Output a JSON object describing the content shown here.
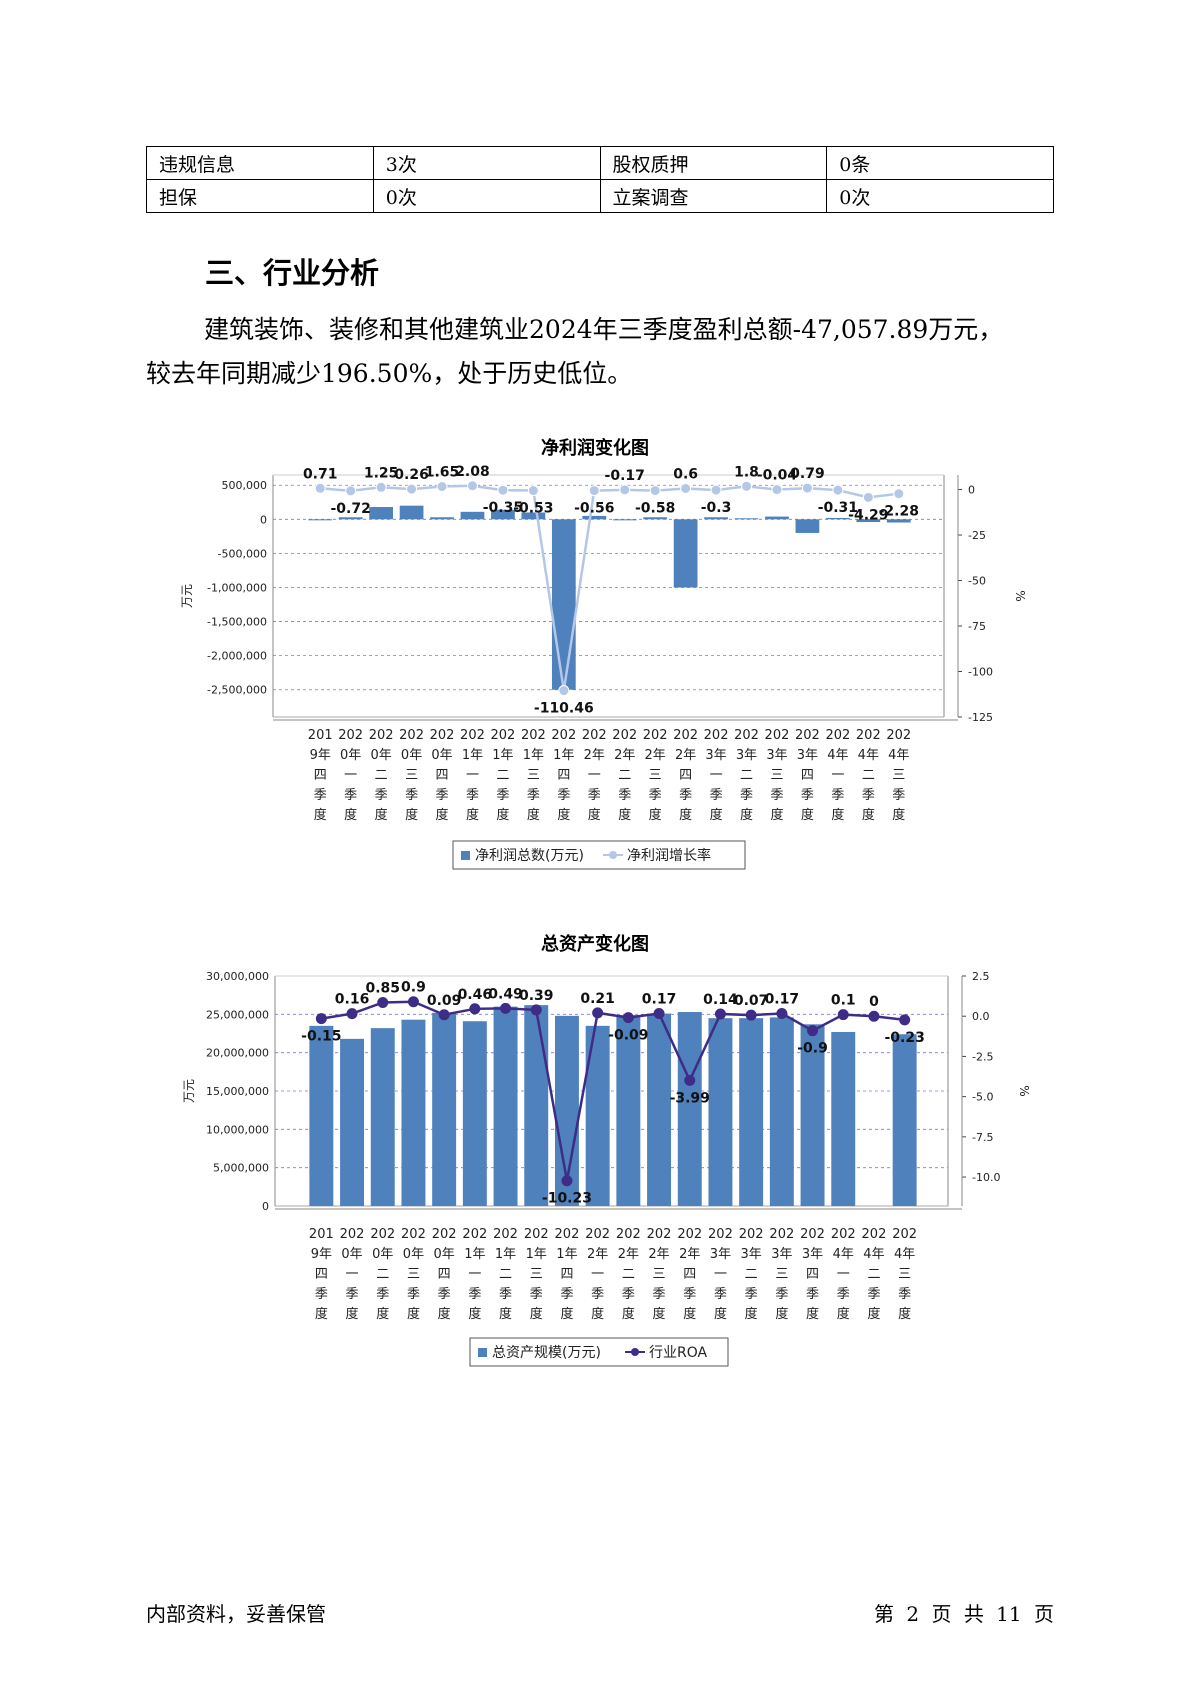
{
  "info_table": {
    "rows": [
      [
        "违规信息",
        "3次",
        "股权质押",
        "0条"
      ],
      [
        "担保",
        "0次",
        "立案调查",
        "0次"
      ]
    ]
  },
  "section": {
    "title": "三、行业分析",
    "paragraph_line1": "建筑装饰、装修和其他建筑业2024年三季度盈利总额-47,057.89万元，",
    "paragraph_line2": "较去年同期减少196.50%，处于历史低位。"
  },
  "colors": {
    "bar_blue": "#4f81bd",
    "light_line": "#b4c7e7",
    "dark_line": "#3e2c86"
  },
  "categories": [
    "2019年四季度",
    "2020年一季度",
    "2020年二季度",
    "2020年三季度",
    "2020年四季度",
    "2021年一季度",
    "2021年二季度",
    "2021年三季度",
    "2021年四季度",
    "2022年一季度",
    "2022年二季度",
    "2022年三季度",
    "2022年四季度",
    "2023年一季度",
    "2023年二季度",
    "2023年三季度",
    "2023年四季度",
    "2024年一季度",
    "2024年二季度",
    "2024年三季度"
  ],
  "chart_data": [
    {
      "type": "bar",
      "title": "净利润变化图",
      "ylabel": "万元",
      "y2label": "%",
      "ylim": [
        -2900000,
        650000
      ],
      "y2lim": [
        -125,
        8
      ],
      "yticks": [
        500000,
        0,
        -500000,
        -1000000,
        -1500000,
        -2000000,
        -2500000
      ],
      "ytick_labels": [
        "500,000",
        "0",
        "-500,000",
        "-1,000,000",
        "-1,500,000",
        "-2,000,000",
        "-2,500,000"
      ],
      "y2ticks": [
        0,
        -25,
        -50,
        -75,
        -100,
        -125
      ],
      "y2tick_labels": [
        "0",
        "-25",
        "-50",
        "-75",
        "-100",
        "-125"
      ],
      "legend_position": "bottom",
      "series": [
        {
          "name": "净利润总数(万元)",
          "kind": "bar",
          "values": [
            -10000,
            30000,
            180000,
            200000,
            30000,
            110000,
            140000,
            100000,
            -2500000,
            50000,
            -15000,
            30000,
            -1000000,
            30000,
            15000,
            40000,
            -200000,
            20000,
            -40000,
            -47057.89
          ]
        },
        {
          "name": "净利润增长率",
          "kind": "line",
          "values": [
            0.71,
            -0.72,
            1.25,
            0.26,
            1.65,
            2.08,
            -0.35,
            -0.53,
            -110.46,
            -0.56,
            -0.17,
            -0.58,
            0.6,
            -0.3,
            1.8,
            -0.04,
            0.79,
            -0.31,
            -4.29,
            -2.28
          ],
          "labels": [
            "0.71",
            "-0.72",
            "1.25",
            "0.26",
            "1.65",
            "2.08",
            "-0.35",
            "-0.53",
            "-110.46",
            "-0.56",
            "-0.17",
            "-0.58",
            "0.6",
            "-0.3",
            "1.8",
            "-0.04",
            "0.79",
            "-0.31",
            "-4.29",
            "-2.28"
          ]
        }
      ]
    },
    {
      "type": "bar",
      "title": "总资产变化图",
      "ylabel": "万元",
      "y2label": "%",
      "ylim": [
        0,
        30000000
      ],
      "y2lim": [
        -11.8,
        2.5
      ],
      "yticks": [
        30000000,
        25000000,
        20000000,
        15000000,
        10000000,
        5000000,
        0
      ],
      "ytick_labels": [
        "30,000,000",
        "25,000,000",
        "20,000,000",
        "15,000,000",
        "10,000,000",
        "5,000,000",
        "0"
      ],
      "y2ticks": [
        2.5,
        0,
        -2.5,
        -5,
        -7.5,
        -10
      ],
      "y2tick_labels": [
        "2.5",
        "0.0",
        "-2.5",
        "-5.0",
        "-7.5",
        "-10.0"
      ],
      "legend_position": "bottom",
      "series": [
        {
          "name": "总资产规模(万元)",
          "kind": "bar",
          "values": [
            23500000,
            21800000,
            23200000,
            24300000,
            25200000,
            24100000,
            26000000,
            26200000,
            24800000,
            23500000,
            24900000,
            25100000,
            25300000,
            24500000,
            24500000,
            24600000,
            23700000,
            22700000,
            0,
            22400000
          ]
        },
        {
          "name": "行业ROA",
          "kind": "line",
          "values": [
            -0.15,
            0.16,
            0.85,
            0.9,
            0.09,
            0.46,
            0.49,
            0.39,
            -10.23,
            0.21,
            -0.09,
            0.17,
            -3.99,
            0.14,
            0.07,
            0.17,
            -0.9,
            0.1,
            0,
            -0.23
          ],
          "labels": [
            "-0.15",
            "0.16",
            "0.85",
            "0.9",
            "0.09",
            "0.46",
            "0.49",
            "0.39",
            "-10.23",
            "0.21",
            "-0.09",
            "0.17",
            "-3.99",
            "0.14",
            "0.07",
            "0.17",
            "-0.9",
            "0.1",
            "0",
            "-0.23"
          ]
        }
      ]
    }
  ],
  "footer": {
    "left": "内部资料，妥善保管",
    "right": "第 2 页  共 11 页"
  }
}
